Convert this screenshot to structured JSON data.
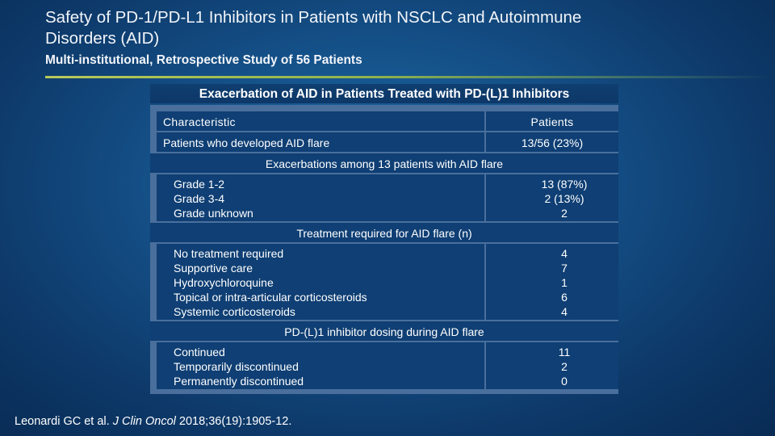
{
  "slide": {
    "title_line1": "Safety of PD-1/PD-L1 Inhibitors in Patients with NSCLC and Autoimmune",
    "title_line2": "Disorders (AID)",
    "subtitle": "Multi-institutional, Retrospective Study of 56 Patients",
    "accent_color": "#a9c255"
  },
  "table": {
    "title": "Exacerbation of AID in Patients Treated with PD-(L)1 Inhibitors",
    "col_characteristic": "Characteristic",
    "col_patients": "Patients",
    "flare_row": {
      "label": "Patients who developed AID flare",
      "value": "13/56 (23%)"
    },
    "sections": [
      {
        "heading": "Exacerbations among 13 patients with AID flare",
        "rows": [
          {
            "label": "Grade 1-2",
            "value": "13 (87%)"
          },
          {
            "label": "Grade 3-4",
            "value": "2 (13%)"
          },
          {
            "label": "Grade unknown",
            "value": "2"
          }
        ]
      },
      {
        "heading": "Treatment required for AID flare (n)",
        "rows": [
          {
            "label": "No treatment required",
            "value": "4"
          },
          {
            "label": "Supportive care",
            "value": "7"
          },
          {
            "label": "Hydroxychloroquine",
            "value": "1"
          },
          {
            "label": "Topical or intra-articular corticosteroids",
            "value": "6"
          },
          {
            "label": "Systemic corticosteroids",
            "value": "4"
          }
        ]
      },
      {
        "heading": "PD-(L)1 inhibitor dosing during AID flare",
        "rows": [
          {
            "label": "Continued",
            "value": "11"
          },
          {
            "label": "Temporarily discontinued",
            "value": "2"
          },
          {
            "label": "Permanently discontinued",
            "value": "0"
          }
        ]
      }
    ]
  },
  "citation": {
    "authors": "Leonardi GC et al. ",
    "journal": "J Clin Oncol",
    "details": " 2018;36(19):1905-12."
  }
}
